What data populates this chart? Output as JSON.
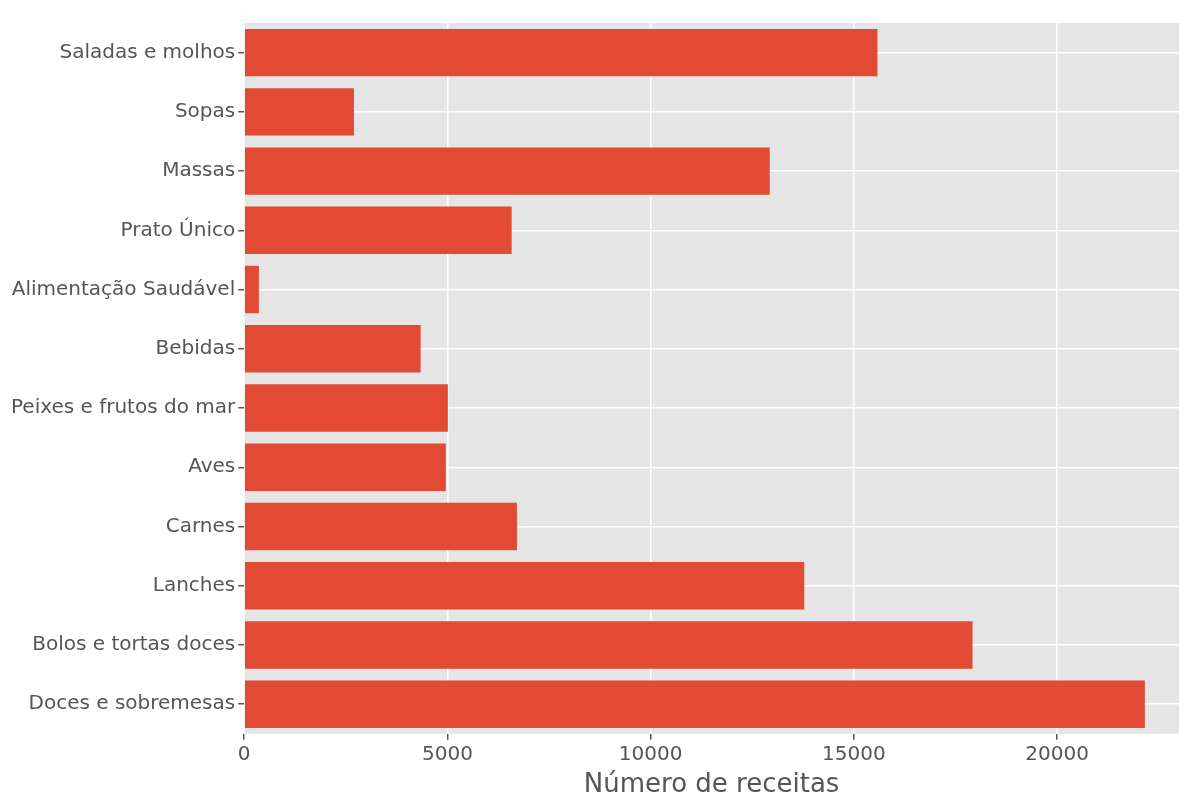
{
  "chart_data": {
    "type": "bar",
    "orientation": "horizontal",
    "xlabel": "Número de receitas",
    "categories": [
      "Saladas e molhos",
      "Sopas",
      "Massas",
      "Prato Único",
      "Alimentação Saudável",
      "Bebidas",
      "Peixes e frutos do mar",
      "Aves",
      "Carnes",
      "Lanches",
      "Bolos e tortas doces",
      "Doces e sobremesas"
    ],
    "values": [
      15580,
      2700,
      12930,
      6580,
      360,
      4340,
      5010,
      4960,
      6710,
      13780,
      17920,
      22160
    ],
    "color": "#e24a33",
    "xlim": [
      0,
      23000
    ],
    "xticks": [
      0,
      5000,
      10000,
      15000,
      20000
    ],
    "grid": true
  }
}
